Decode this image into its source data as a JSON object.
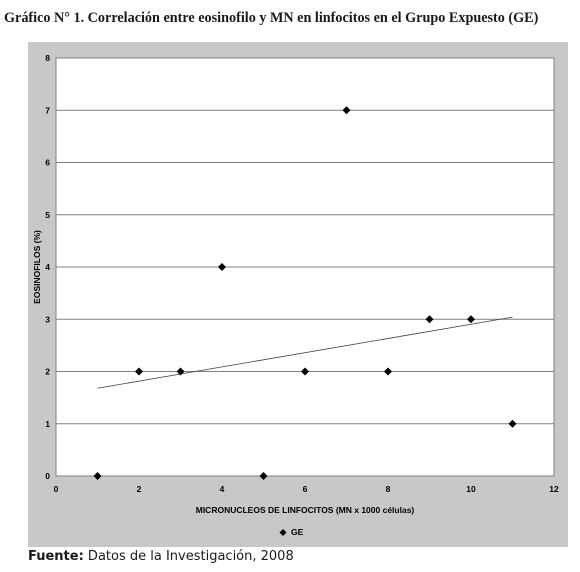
{
  "title": "Gráfico N° 1.  Correlación entre eosinofilo y MN en linfocitos en el Grupo Expuesto (GE)",
  "source": {
    "label": "Fuente:",
    "text": " Datos de la Investigación, 2008"
  },
  "chart_data": {
    "type": "scatter",
    "xlabel": "MICRONUCLEOS DE LINFOCITOS (MN x 1000 células)",
    "ylabel": "EOSINOFILOS (%)",
    "xlim": [
      0,
      12
    ],
    "ylim": [
      0,
      8
    ],
    "xticks": [
      0,
      2,
      4,
      6,
      8,
      10,
      12
    ],
    "yticks": [
      0,
      1,
      2,
      3,
      4,
      5,
      6,
      7,
      8
    ],
    "grid": "horizontal",
    "legend": "bottom",
    "colors": {
      "panel": "#c8c8c8",
      "plot": "#ffffff",
      "marker": "#000000",
      "trend": "#404040",
      "grid": "#808080"
    },
    "series": [
      {
        "name": "GE",
        "marker": "diamond",
        "points": [
          {
            "x": 1,
            "y": 0
          },
          {
            "x": 2,
            "y": 2
          },
          {
            "x": 3,
            "y": 2
          },
          {
            "x": 4,
            "y": 4
          },
          {
            "x": 5,
            "y": 0
          },
          {
            "x": 6,
            "y": 2
          },
          {
            "x": 7,
            "y": 7
          },
          {
            "x": 8,
            "y": 2
          },
          {
            "x": 9,
            "y": 3
          },
          {
            "x": 10,
            "y": 3
          },
          {
            "x": 11,
            "y": 1
          }
        ]
      }
    ],
    "trendline": {
      "type": "linear",
      "from": {
        "x": 1,
        "y": 1.68
      },
      "to": {
        "x": 11,
        "y": 3.04
      }
    }
  }
}
